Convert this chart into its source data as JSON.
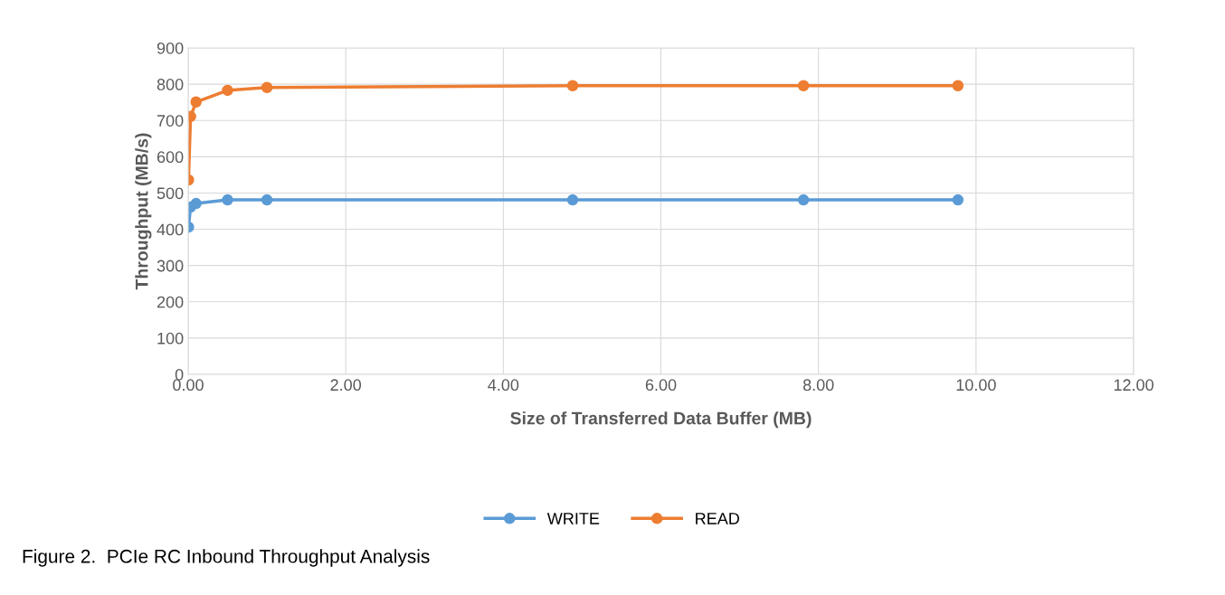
{
  "chart_data": {
    "type": "line",
    "xlabel": "Size of Transferred Data Buffer (MB)",
    "ylabel": "Throughput (MB/s)",
    "x": [
      0.004,
      0.03,
      0.1,
      0.5,
      1.0,
      4.88,
      7.81,
      9.77
    ],
    "series": [
      {
        "name": "WRITE",
        "color": "#5b9bd5",
        "values": [
          406,
          461,
          471,
          481,
          481,
          481,
          481,
          481
        ]
      },
      {
        "name": "READ",
        "color": "#ed7d31",
        "values": [
          536,
          711,
          751,
          783,
          791,
          796,
          796,
          796
        ]
      }
    ],
    "xlim": [
      0,
      12
    ],
    "xticks": [
      {
        "value": 0,
        "label": "0.00"
      },
      {
        "value": 2,
        "label": "2.00"
      },
      {
        "value": 4,
        "label": "4.00"
      },
      {
        "value": 6,
        "label": "6.00"
      },
      {
        "value": 8,
        "label": "8.00"
      },
      {
        "value": 10,
        "label": "10.00"
      },
      {
        "value": 12,
        "label": "12.00"
      }
    ],
    "ylim": [
      0,
      900
    ],
    "yticks": [
      0,
      100,
      200,
      300,
      400,
      500,
      600,
      700,
      800,
      900
    ],
    "grid": true,
    "legend": "bottom",
    "marker": "circle",
    "line_style": "solid",
    "annotations": [
      "Figure 2.  PCIe RC Inbound Throughput Analysis"
    ]
  }
}
